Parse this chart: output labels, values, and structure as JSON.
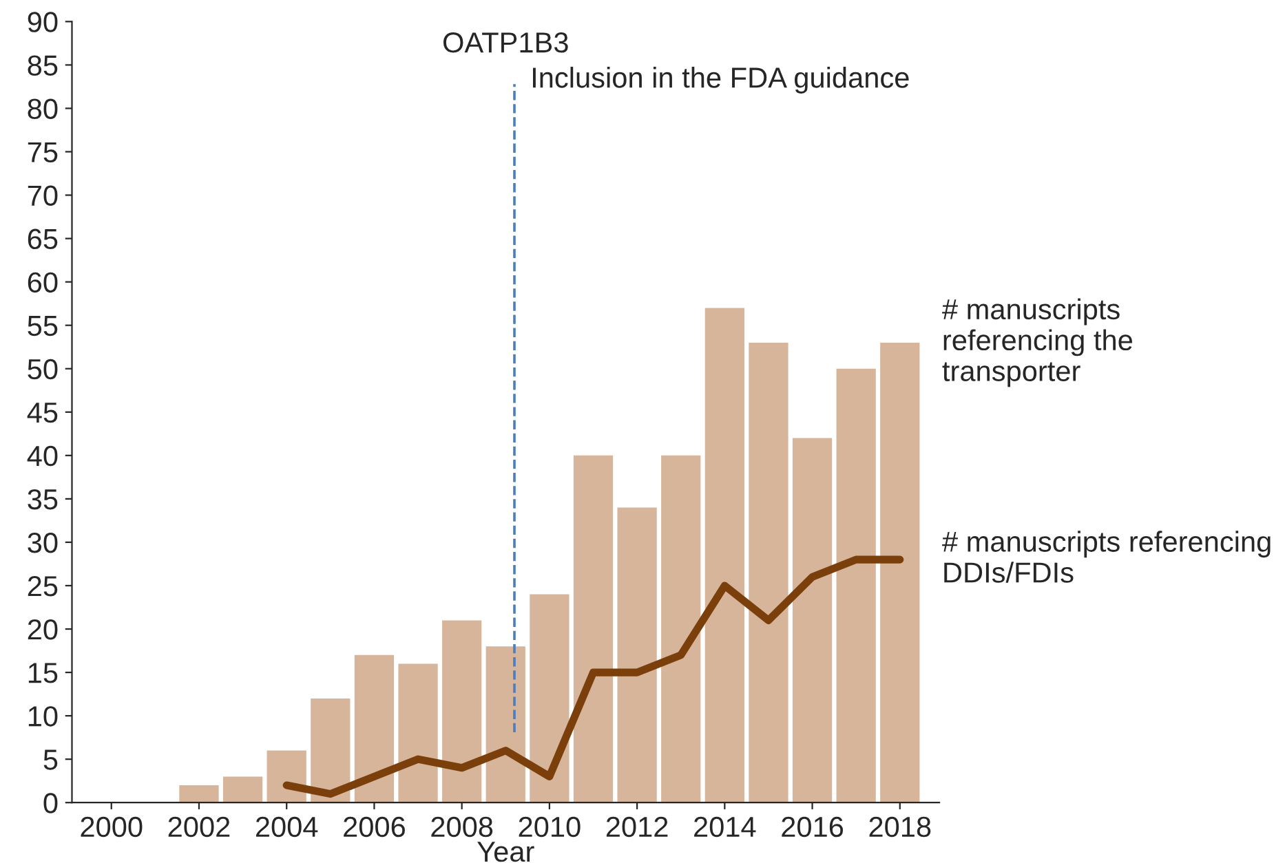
{
  "chart_data": {
    "type": "bar",
    "title": "OATP1B3",
    "xlabel": "Year",
    "x": [
      2002,
      2003,
      2004,
      2005,
      2006,
      2007,
      2008,
      2009,
      2010,
      2011,
      2012,
      2013,
      2014,
      2015,
      2016,
      2017,
      2018
    ],
    "series": [
      {
        "name": "# manuscripts\nreferencing the\ntransporter",
        "color": "#d6b59a",
        "values": [
          2,
          3,
          6,
          12,
          17,
          16,
          21,
          18,
          24,
          40,
          34,
          40,
          57,
          53,
          42,
          50,
          53
        ]
      },
      {
        "name": "# manuscripts referencing\nDDIs/FDIs",
        "type": "line",
        "color": "#7b3f0c",
        "x": [
          2004,
          2005,
          2006,
          2007,
          2008,
          2009,
          2010,
          2011,
          2012,
          2013,
          2014,
          2015,
          2016,
          2017,
          2018
        ],
        "values": [
          2,
          1,
          3,
          5,
          4,
          6,
          3,
          15,
          15,
          17,
          25,
          21,
          26,
          28,
          28
        ]
      }
    ],
    "ref_lines": [
      {
        "axis": "x",
        "value": 2009.2,
        "label": "Inclusion in the FDA guidance",
        "color": "#4a7ec0",
        "line_style": "dashed"
      }
    ],
    "xlim": [
      1999.1,
      2018.9
    ],
    "xticks": [
      2000,
      2002,
      2004,
      2006,
      2008,
      2010,
      2012,
      2014,
      2016,
      2018
    ],
    "ylim": [
      0,
      90
    ],
    "yticks": [
      0,
      5,
      10,
      15,
      20,
      25,
      30,
      35,
      40,
      45,
      50,
      55,
      60,
      65,
      70,
      75,
      80,
      85,
      90
    ],
    "grid": false,
    "legend": false,
    "marker": "none",
    "line_style": "solid"
  }
}
